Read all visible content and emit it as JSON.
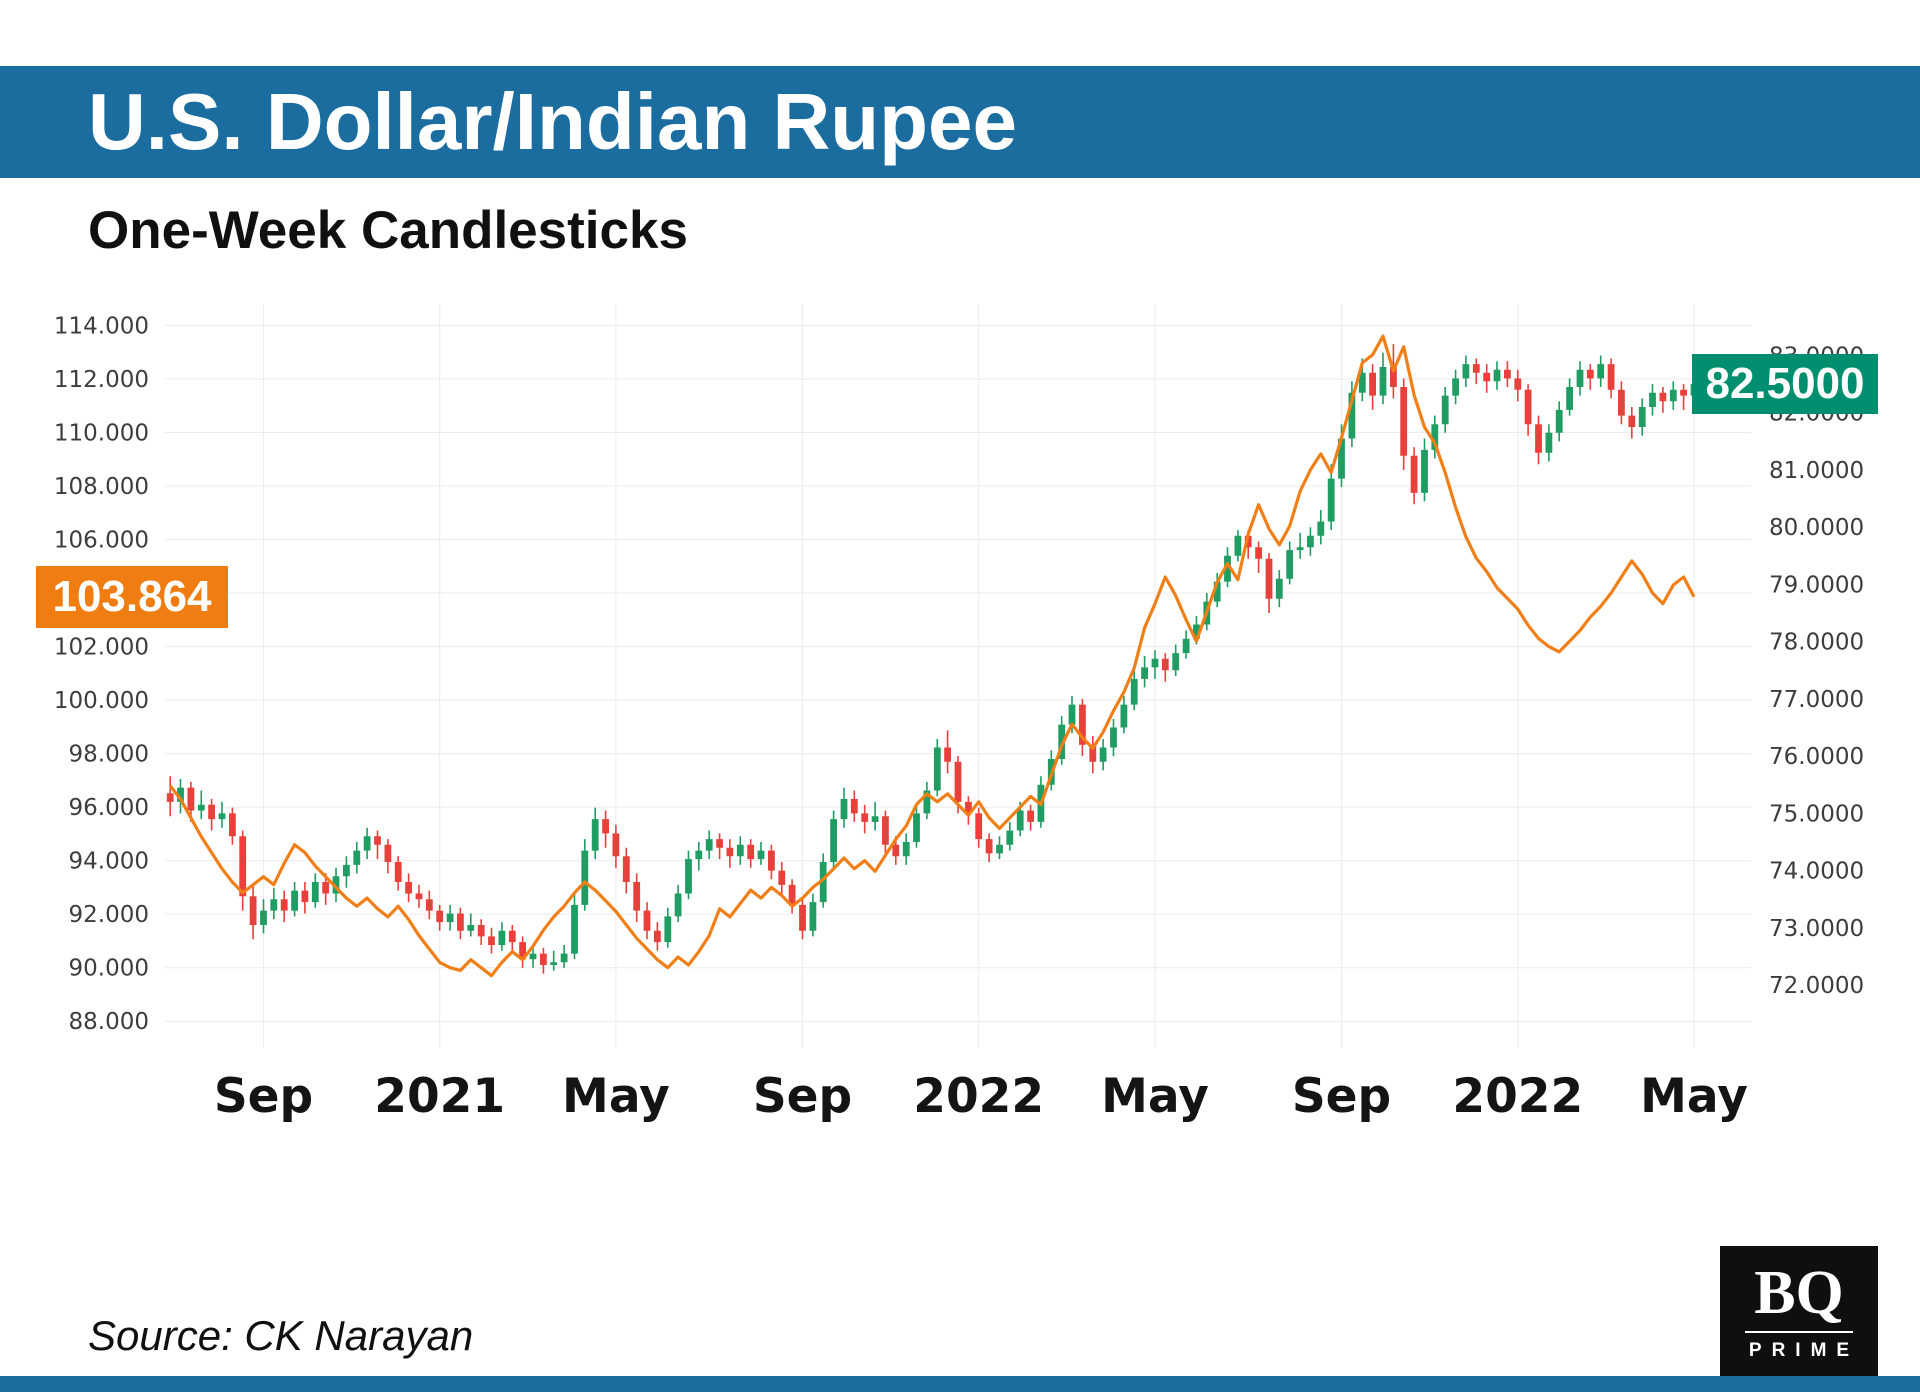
{
  "header": {
    "title": "U.S. Dollar/Indian Rupee",
    "subtitle": "One-Week Candlesticks"
  },
  "footer": {
    "source": "Source: CK Narayan",
    "logo_top": "BQ",
    "logo_bottom": "PRIME"
  },
  "colors": {
    "header_blue": "#1a6d9e",
    "bottom_bar": "#1a6d9e",
    "candle_up": "#1f9d63",
    "candle_down": "#e8403a",
    "line": "#f07f18",
    "left_label_bg": "#ef7d12",
    "right_label_bg": "#008f6e",
    "grid": "#ececec"
  },
  "chart_data": {
    "type": "candlestick",
    "title": "U.S. Dollar/Indian Rupee",
    "subtitle": "One-Week Candlesticks",
    "interval": "one-week",
    "slots": 153,
    "grid": true,
    "left_axis": {
      "min": 87.0,
      "max": 114.8,
      "ticks": [
        "114.000",
        "112.000",
        "110.000",
        "108.000",
        "106.000",
        "104.000",
        "102.000",
        "100.000",
        "98.000",
        "96.000",
        "94.000",
        "92.000",
        "90.000",
        "88.000"
      ]
    },
    "right_axis": {
      "min": 70.9,
      "max": 83.9,
      "ticks": [
        "83.0000",
        "82.0000",
        "81.0000",
        "80.0000",
        "79.0000",
        "78.0000",
        "77.0000",
        "76.0000",
        "75.0000",
        "74.0000",
        "73.0000",
        "72.0000"
      ]
    },
    "x_labels": [
      {
        "text": "Sep",
        "week": 9
      },
      {
        "text": "2021",
        "week": 26
      },
      {
        "text": "May",
        "week": 43
      },
      {
        "text": "Sep",
        "week": 61
      },
      {
        "text": "2022",
        "week": 78
      },
      {
        "text": "May",
        "week": 95
      },
      {
        "text": "Sep",
        "week": 113
      },
      {
        "text": "2022",
        "week": 130
      },
      {
        "text": "May",
        "week": 147
      }
    ],
    "last_price_labels": {
      "left": {
        "text": "103.864",
        "value": 103.864
      },
      "right": {
        "text": "82.5000",
        "value": 82.5
      }
    },
    "series": [
      {
        "name": "USD/INR one-week candles",
        "type": "candlestick",
        "axis": "right",
        "ohlc": [
          [
            75.35,
            75.65,
            74.95,
            75.2
          ],
          [
            75.2,
            75.6,
            75.0,
            75.45
          ],
          [
            75.45,
            75.55,
            74.85,
            75.05
          ],
          [
            75.05,
            75.4,
            74.9,
            75.15
          ],
          [
            75.15,
            75.25,
            74.7,
            74.9
          ],
          [
            74.9,
            75.2,
            74.75,
            75.0
          ],
          [
            75.0,
            75.1,
            74.45,
            74.6
          ],
          [
            74.6,
            74.7,
            73.3,
            73.55
          ],
          [
            73.55,
            73.75,
            72.8,
            73.05
          ],
          [
            73.05,
            73.5,
            72.9,
            73.3
          ],
          [
            73.3,
            73.7,
            73.15,
            73.5
          ],
          [
            73.5,
            73.65,
            73.1,
            73.3
          ],
          [
            73.3,
            73.8,
            73.2,
            73.65
          ],
          [
            73.65,
            73.8,
            73.25,
            73.45
          ],
          [
            73.45,
            73.95,
            73.35,
            73.8
          ],
          [
            73.8,
            73.95,
            73.4,
            73.6
          ],
          [
            73.6,
            74.05,
            73.45,
            73.9
          ],
          [
            73.9,
            74.25,
            73.7,
            74.1
          ],
          [
            74.1,
            74.5,
            73.95,
            74.35
          ],
          [
            74.35,
            74.75,
            74.2,
            74.6
          ],
          [
            74.6,
            74.7,
            74.2,
            74.45
          ],
          [
            74.45,
            74.55,
            73.95,
            74.15
          ],
          [
            74.15,
            74.25,
            73.65,
            73.8
          ],
          [
            73.8,
            73.95,
            73.45,
            73.6
          ],
          [
            73.6,
            73.75,
            73.35,
            73.5
          ],
          [
            73.5,
            73.65,
            73.15,
            73.3
          ],
          [
            73.3,
            73.4,
            72.95,
            73.1
          ],
          [
            73.1,
            73.4,
            72.95,
            73.25
          ],
          [
            73.25,
            73.35,
            72.8,
            72.95
          ],
          [
            72.95,
            73.25,
            72.85,
            73.05
          ],
          [
            73.05,
            73.15,
            72.7,
            72.85
          ],
          [
            72.85,
            73.0,
            72.55,
            72.7
          ],
          [
            72.7,
            73.1,
            72.6,
            72.95
          ],
          [
            72.95,
            73.05,
            72.6,
            72.75
          ],
          [
            72.75,
            72.85,
            72.3,
            72.45
          ],
          [
            72.45,
            72.7,
            72.3,
            72.55
          ],
          [
            72.55,
            72.65,
            72.2,
            72.35
          ],
          [
            72.35,
            72.6,
            72.25,
            72.4
          ],
          [
            72.4,
            72.7,
            72.3,
            72.55
          ],
          [
            72.55,
            73.6,
            72.45,
            73.4
          ],
          [
            73.4,
            74.55,
            73.3,
            74.35
          ],
          [
            74.35,
            75.1,
            74.2,
            74.9
          ],
          [
            74.9,
            75.05,
            74.4,
            74.65
          ],
          [
            74.65,
            74.8,
            74.05,
            74.25
          ],
          [
            74.25,
            74.4,
            73.6,
            73.8
          ],
          [
            73.8,
            73.95,
            73.1,
            73.3
          ],
          [
            73.3,
            73.45,
            72.8,
            72.95
          ],
          [
            72.95,
            73.1,
            72.6,
            72.75
          ],
          [
            72.75,
            73.35,
            72.65,
            73.2
          ],
          [
            73.2,
            73.75,
            73.1,
            73.6
          ],
          [
            73.6,
            74.35,
            73.5,
            74.2
          ],
          [
            74.2,
            74.5,
            74.0,
            74.35
          ],
          [
            74.35,
            74.7,
            74.2,
            74.55
          ],
          [
            74.55,
            74.65,
            74.2,
            74.4
          ],
          [
            74.4,
            74.55,
            74.05,
            74.25
          ],
          [
            74.25,
            74.6,
            74.1,
            74.45
          ],
          [
            74.45,
            74.55,
            74.05,
            74.2
          ],
          [
            74.2,
            74.5,
            74.1,
            74.35
          ],
          [
            74.35,
            74.45,
            73.85,
            74.0
          ],
          [
            74.0,
            74.15,
            73.55,
            73.75
          ],
          [
            73.75,
            73.85,
            73.25,
            73.4
          ],
          [
            73.4,
            73.5,
            72.8,
            72.95
          ],
          [
            72.95,
            73.6,
            72.85,
            73.45
          ],
          [
            73.45,
            74.3,
            73.35,
            74.15
          ],
          [
            74.15,
            75.05,
            74.05,
            74.9
          ],
          [
            74.9,
            75.45,
            74.75,
            75.25
          ],
          [
            75.25,
            75.4,
            74.85,
            75.0
          ],
          [
            75.0,
            75.15,
            74.65,
            74.85
          ],
          [
            74.85,
            75.2,
            74.7,
            74.95
          ],
          [
            74.95,
            75.05,
            74.3,
            74.45
          ],
          [
            74.45,
            74.6,
            74.1,
            74.25
          ],
          [
            74.25,
            74.65,
            74.1,
            74.5
          ],
          [
            74.5,
            75.15,
            74.4,
            75.0
          ],
          [
            75.0,
            75.55,
            74.9,
            75.4
          ],
          [
            75.4,
            76.3,
            75.3,
            76.15
          ],
          [
            76.15,
            76.45,
            75.7,
            75.9
          ],
          [
            75.9,
            76.0,
            75.0,
            75.2
          ],
          [
            75.2,
            75.3,
            74.8,
            75.0
          ],
          [
            75.0,
            75.1,
            74.4,
            74.55
          ],
          [
            74.55,
            74.65,
            74.15,
            74.3
          ],
          [
            74.3,
            74.6,
            74.2,
            74.45
          ],
          [
            74.45,
            74.85,
            74.35,
            74.7
          ],
          [
            74.7,
            75.2,
            74.6,
            75.05
          ],
          [
            75.05,
            75.15,
            74.7,
            74.85
          ],
          [
            74.85,
            75.65,
            74.75,
            75.5
          ],
          [
            75.5,
            76.1,
            75.4,
            75.95
          ],
          [
            75.95,
            76.7,
            75.85,
            76.55
          ],
          [
            76.55,
            77.05,
            76.4,
            76.9
          ],
          [
            76.9,
            77.0,
            76.0,
            76.2
          ],
          [
            76.2,
            76.35,
            75.7,
            75.9
          ],
          [
            75.9,
            76.3,
            75.75,
            76.15
          ],
          [
            76.15,
            76.65,
            76.0,
            76.5
          ],
          [
            76.5,
            77.05,
            76.4,
            76.9
          ],
          [
            76.9,
            77.5,
            76.8,
            77.35
          ],
          [
            77.35,
            77.75,
            77.2,
            77.55
          ],
          [
            77.55,
            77.85,
            77.35,
            77.7
          ],
          [
            77.7,
            77.8,
            77.3,
            77.5
          ],
          [
            77.5,
            77.95,
            77.4,
            77.8
          ],
          [
            77.8,
            78.2,
            77.7,
            78.05
          ],
          [
            78.05,
            78.45,
            77.95,
            78.3
          ],
          [
            78.3,
            78.85,
            78.2,
            78.7
          ],
          [
            78.7,
            79.2,
            78.6,
            79.05
          ],
          [
            79.05,
            79.65,
            78.95,
            79.5
          ],
          [
            79.5,
            79.95,
            79.4,
            79.85
          ],
          [
            79.85,
            79.95,
            79.45,
            79.65
          ],
          [
            79.65,
            79.75,
            79.2,
            79.45
          ],
          [
            79.45,
            79.55,
            78.5,
            78.75
          ],
          [
            78.75,
            79.25,
            78.6,
            79.1
          ],
          [
            79.1,
            79.75,
            79.0,
            79.6
          ],
          [
            79.6,
            79.9,
            79.45,
            79.65
          ],
          [
            79.65,
            80.0,
            79.5,
            79.85
          ],
          [
            79.85,
            80.3,
            79.7,
            80.1
          ],
          [
            80.1,
            81.1,
            79.95,
            80.85
          ],
          [
            80.85,
            81.8,
            80.7,
            81.55
          ],
          [
            81.55,
            82.55,
            81.4,
            82.35
          ],
          [
            82.35,
            82.95,
            82.2,
            82.7
          ],
          [
            82.7,
            82.85,
            82.05,
            82.3
          ],
          [
            82.3,
            83.05,
            82.15,
            82.8
          ],
          [
            82.8,
            83.2,
            82.25,
            82.45
          ],
          [
            82.45,
            82.6,
            81.0,
            81.25
          ],
          [
            81.25,
            81.4,
            80.4,
            80.6
          ],
          [
            80.6,
            81.55,
            80.45,
            81.35
          ],
          [
            81.35,
            81.95,
            81.2,
            81.8
          ],
          [
            81.8,
            82.45,
            81.65,
            82.3
          ],
          [
            82.3,
            82.75,
            82.15,
            82.6
          ],
          [
            82.6,
            83.0,
            82.45,
            82.85
          ],
          [
            82.85,
            82.95,
            82.5,
            82.7
          ],
          [
            82.7,
            82.85,
            82.35,
            82.55
          ],
          [
            82.55,
            82.9,
            82.4,
            82.75
          ],
          [
            82.75,
            82.9,
            82.45,
            82.6
          ],
          [
            82.6,
            82.75,
            82.2,
            82.4
          ],
          [
            82.4,
            82.5,
            81.6,
            81.8
          ],
          [
            81.8,
            81.95,
            81.1,
            81.3
          ],
          [
            81.3,
            81.8,
            81.15,
            81.65
          ],
          [
            81.65,
            82.2,
            81.5,
            82.05
          ],
          [
            82.05,
            82.6,
            81.95,
            82.45
          ],
          [
            82.45,
            82.9,
            82.3,
            82.75
          ],
          [
            82.75,
            82.85,
            82.4,
            82.6
          ],
          [
            82.6,
            83.0,
            82.45,
            82.85
          ],
          [
            82.85,
            82.95,
            82.25,
            82.4
          ],
          [
            82.4,
            82.55,
            81.8,
            81.95
          ],
          [
            81.95,
            82.1,
            81.55,
            81.75
          ],
          [
            81.75,
            82.25,
            81.6,
            82.1
          ],
          [
            82.1,
            82.5,
            81.95,
            82.35
          ],
          [
            82.35,
            82.45,
            82.0,
            82.2
          ],
          [
            82.2,
            82.55,
            82.05,
            82.4
          ],
          [
            82.4,
            82.5,
            82.05,
            82.3
          ],
          [
            82.3,
            82.65,
            82.15,
            82.5
          ]
        ]
      },
      {
        "name": "orange overlay line (left scale)",
        "type": "line",
        "axis": "left",
        "values": [
          96.8,
          96.3,
          95.6,
          94.9,
          94.3,
          93.7,
          93.2,
          92.8,
          93.1,
          93.4,
          93.1,
          93.9,
          94.6,
          94.3,
          93.8,
          93.4,
          93.0,
          92.6,
          92.3,
          92.6,
          92.2,
          91.9,
          92.3,
          91.8,
          91.2,
          90.7,
          90.2,
          90.0,
          89.9,
          90.3,
          90.0,
          89.7,
          90.2,
          90.6,
          90.3,
          90.8,
          91.4,
          91.9,
          92.3,
          92.8,
          93.2,
          92.9,
          92.5,
          92.1,
          91.6,
          91.1,
          90.7,
          90.3,
          90.0,
          90.4,
          90.1,
          90.6,
          91.2,
          92.2,
          91.9,
          92.4,
          92.9,
          92.6,
          93.0,
          92.7,
          92.3,
          92.6,
          93.0,
          93.3,
          93.7,
          94.1,
          93.7,
          94.0,
          93.6,
          94.2,
          94.8,
          95.3,
          96.1,
          96.5,
          96.2,
          96.5,
          96.1,
          95.7,
          96.2,
          95.6,
          95.2,
          95.6,
          96.0,
          96.4,
          96.1,
          97.2,
          98.3,
          99.1,
          98.6,
          98.2,
          98.8,
          99.6,
          100.3,
          101.2,
          102.7,
          103.6,
          104.6,
          103.9,
          103.0,
          102.2,
          103.3,
          104.4,
          105.1,
          104.5,
          106.2,
          107.3,
          106.4,
          105.8,
          106.5,
          107.8,
          108.6,
          109.2,
          108.5,
          109.8,
          111.2,
          112.6,
          112.9,
          113.6,
          112.3,
          113.2,
          111.4,
          110.2,
          109.6,
          108.5,
          107.2,
          106.1,
          105.3,
          104.8,
          104.2,
          103.8,
          103.4,
          102.8,
          102.3,
          102.0,
          101.8,
          102.2,
          102.6,
          103.1,
          103.5,
          104.0,
          104.6,
          105.2,
          104.7,
          104.0,
          103.6,
          104.3,
          104.6,
          103.864
        ]
      }
    ]
  }
}
